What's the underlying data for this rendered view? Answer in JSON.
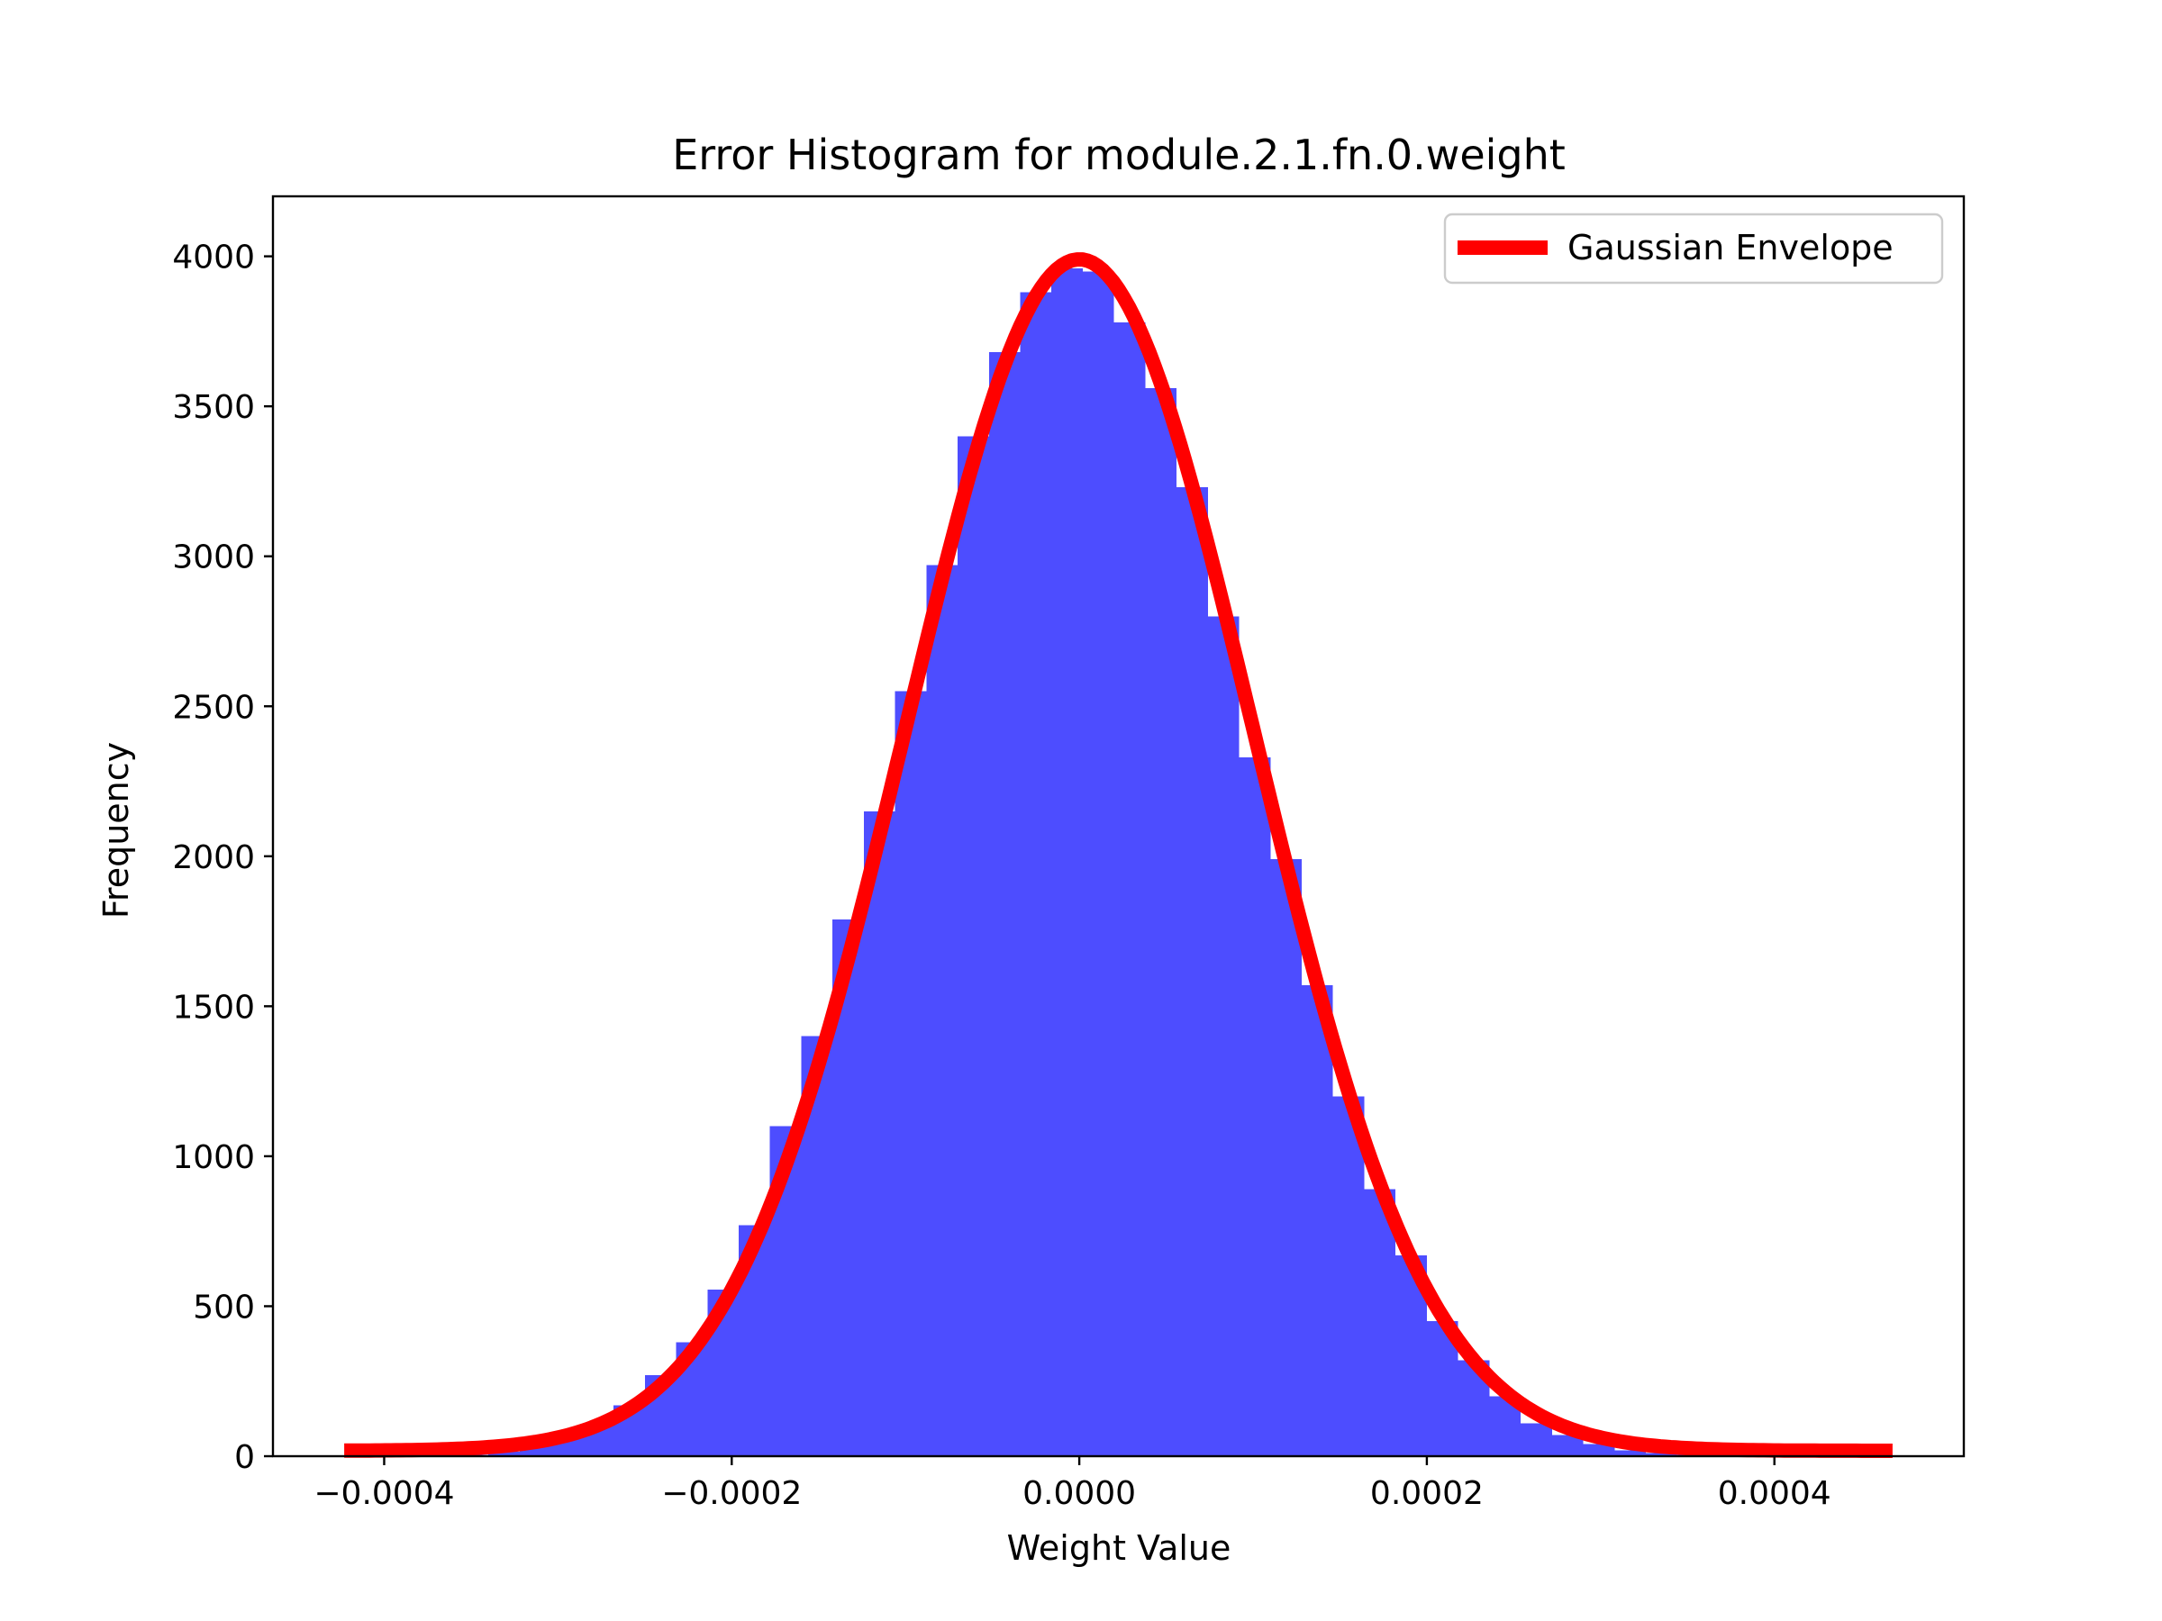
{
  "chart_data": {
    "type": "bar",
    "title": "Error Histogram for module.2.1.fn.0.weight",
    "xlabel": "Weight Value",
    "ylabel": "Frequency",
    "xlim": [
      -0.000464,
      0.000509
    ],
    "ylim": [
      0,
      4200
    ],
    "grid": false,
    "legend_position": "top-right",
    "x_ticks": [
      -0.0004,
      -0.0002,
      0.0,
      0.0002,
      0.0004
    ],
    "x_tick_labels": [
      "−0.0004",
      "−0.0002",
      "0.0000",
      "0.0002",
      "0.0004"
    ],
    "y_ticks": [
      0,
      500,
      1000,
      1500,
      2000,
      2500,
      3000,
      3500,
      4000
    ],
    "y_tick_labels": [
      "0",
      "500",
      "1000",
      "1500",
      "2000",
      "2500",
      "3000",
      "3500",
      "4000"
    ],
    "histogram": {
      "name": "",
      "color": "#4d4dff",
      "bin_edges": [
        -0.000358,
        -0.00034,
        -0.000322,
        -0.000304,
        -0.000286,
        -0.000268,
        -0.00025,
        -0.000232,
        -0.000214,
        -0.000196,
        -0.000178,
        -0.00016,
        -0.000142,
        -0.000124,
        -0.000106,
        -8.8e-05,
        -7e-05,
        -5.2e-05,
        -3.4e-05,
        -1.6e-05,
        2e-06,
        2e-05,
        3.8e-05,
        5.6e-05,
        7.4e-05,
        9.2e-05,
        0.00011,
        0.000128,
        0.000146,
        0.000164,
        0.000182,
        0.0002,
        0.000218,
        0.000236,
        0.000254,
        0.000272,
        0.00029,
        0.000308,
        0.000326,
        0.000344,
        0.000362
      ],
      "counts": [
        5,
        15,
        35,
        60,
        110,
        170,
        270,
        380,
        555,
        770,
        1100,
        1400,
        1790,
        2150,
        2550,
        2970,
        3400,
        3680,
        3880,
        3960,
        3950,
        3780,
        3560,
        3230,
        2800,
        2330,
        1990,
        1570,
        1200,
        890,
        670,
        450,
        320,
        200,
        110,
        70,
        40,
        20,
        10,
        5
      ]
    },
    "series": [
      {
        "name": "Gaussian Envelope",
        "type": "line",
        "color": "#ff0000",
        "mean": 0.0,
        "std": 0.0001,
        "peak": 3990,
        "baseline": 18,
        "x_range": [
          -0.000423,
          0.000468
        ]
      }
    ]
  }
}
